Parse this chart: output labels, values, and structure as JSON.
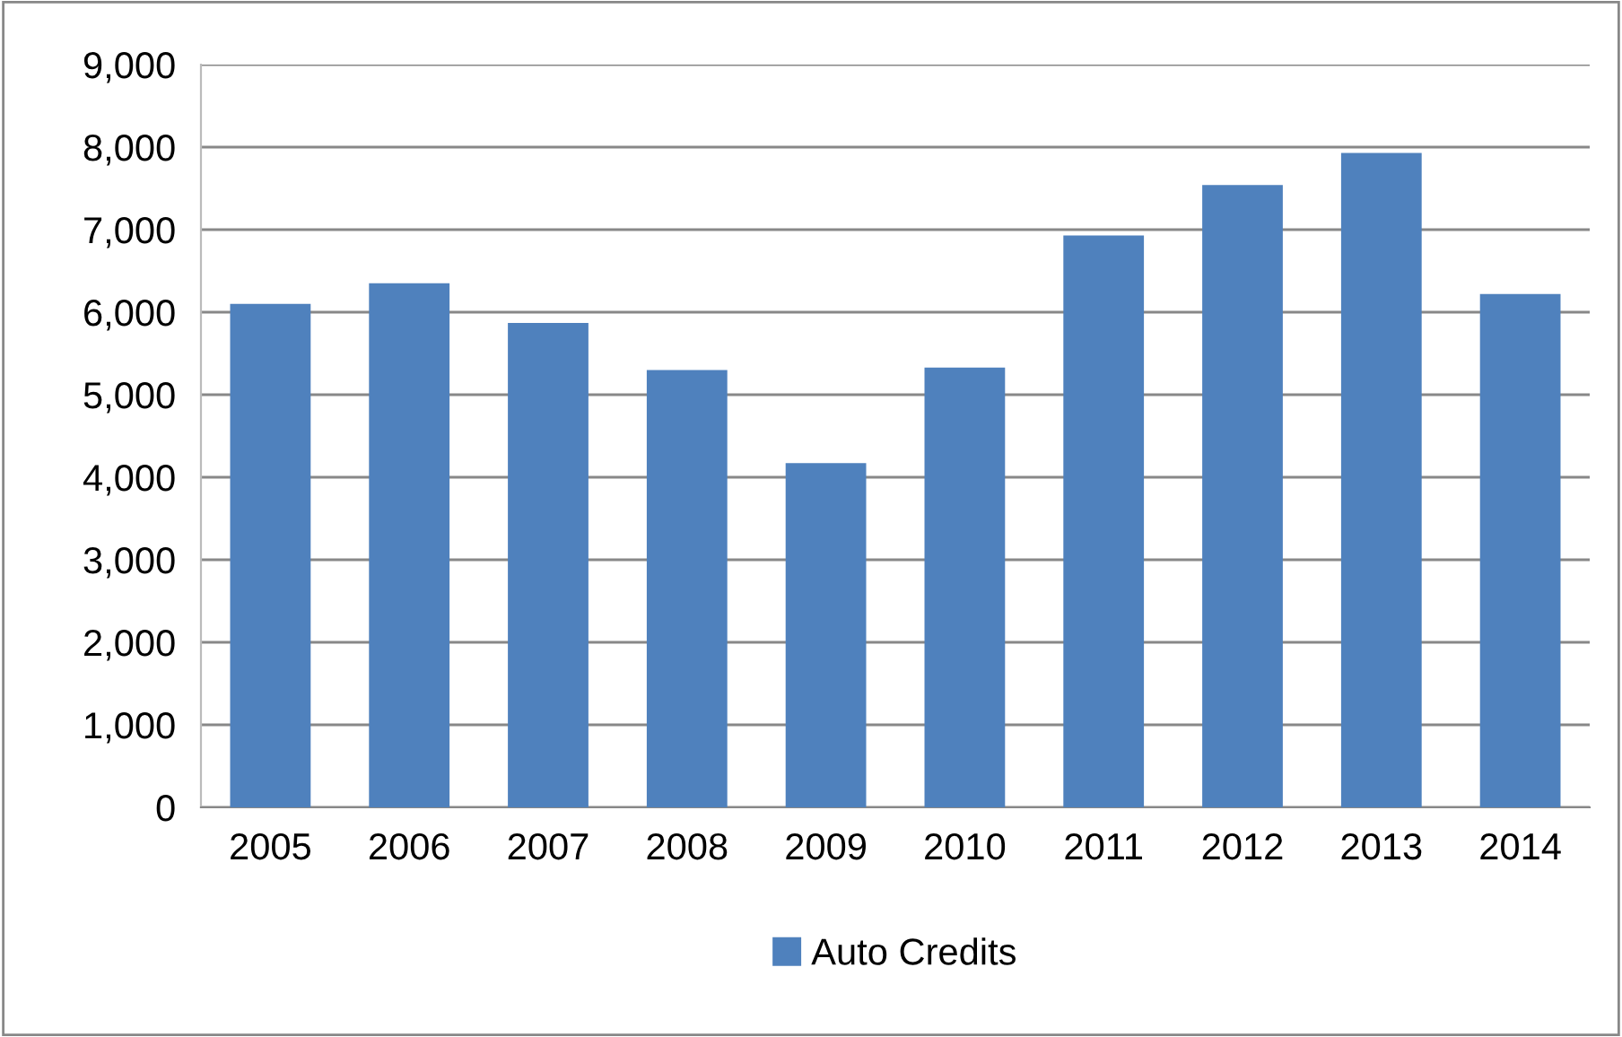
{
  "chart_data": {
    "type": "bar",
    "categories": [
      "2005",
      "2006",
      "2007",
      "2008",
      "2009",
      "2010",
      "2011",
      "2012",
      "2013",
      "2014"
    ],
    "series": [
      {
        "name": "Auto Credits",
        "color": "#4f81bd",
        "values": [
          6100,
          6350,
          5870,
          5300,
          4170,
          5330,
          6930,
          7540,
          7930,
          6220
        ]
      }
    ],
    "ylim": [
      0,
      9000
    ],
    "yticks": [
      {
        "value": 0,
        "label": "0"
      },
      {
        "value": 1000,
        "label": "1,000"
      },
      {
        "value": 2000,
        "label": "2,000"
      },
      {
        "value": 3000,
        "label": "3,000"
      },
      {
        "value": 4000,
        "label": "4,000"
      },
      {
        "value": 5000,
        "label": "5,000"
      },
      {
        "value": 6000,
        "label": "6,000"
      },
      {
        "value": 7000,
        "label": "7,000"
      },
      {
        "value": 8000,
        "label": "8,000"
      },
      {
        "value": 9000,
        "label": "9,000"
      }
    ],
    "grid": "y",
    "legend": "bottom"
  }
}
